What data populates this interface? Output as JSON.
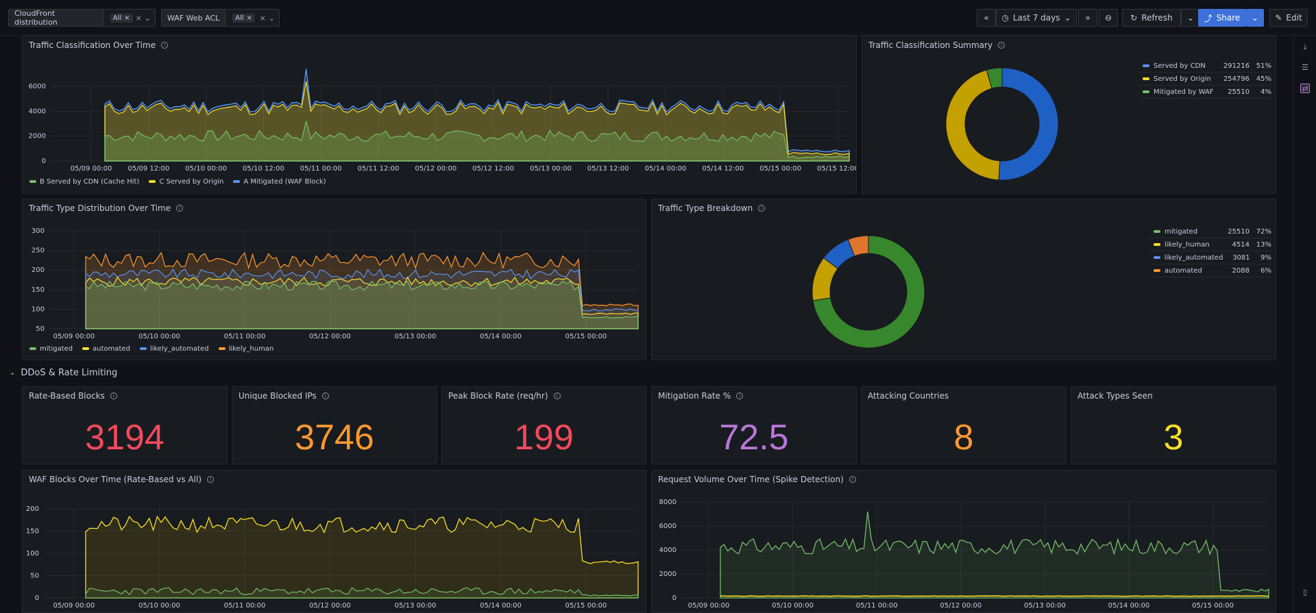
{
  "variables": [
    {
      "label": "CloudFront distribution",
      "value": "All"
    },
    {
      "label": "WAF Web ACL",
      "value": "All"
    }
  ],
  "toolbar": {
    "time_range": "Last 7 days",
    "refresh": "Refresh",
    "share": "Share",
    "edit": "Edit"
  },
  "icons": {
    "info": "i",
    "close": "×",
    "chevron": "⌄",
    "prev": "«",
    "next": "»",
    "zoom": "⊖",
    "refresh": "↻",
    "share": "⤴",
    "edit": "✎",
    "collapse": "⌄",
    "export": "⤓",
    "outline": "☰",
    "toggle": "⇄",
    "panel": "▯"
  },
  "colors": {
    "green": "#73bf69",
    "yellow": "#fade2a",
    "blue": "#5794f2",
    "orange": "#ff9830",
    "red": "#f2495c",
    "purple": "#b877d9",
    "cdn_blue": "#1f60c4",
    "origin_yellow": "#c4a000"
  },
  "panels": {
    "traffic_class_over_time": {
      "title": "Traffic Classification Over Time",
      "yticks": [
        "6000",
        "4000",
        "2000",
        "0"
      ],
      "xticks": [
        "05/09 00:00",
        "05/09 12:00",
        "05/10 00:00",
        "05/10 12:00",
        "05/11 00:00",
        "05/11 12:00",
        "05/12 00:00",
        "05/12 12:00",
        "05/13 00:00",
        "05/13 12:00",
        "05/14 00:00",
        "05/14 12:00",
        "05/15 00:00",
        "05/15 12:00"
      ],
      "legend": [
        "B Served by CDN (Cache Hit)",
        "C Served by Origin",
        "A Mitigated (WAF Block)"
      ]
    },
    "traffic_class_summary": {
      "title": "Traffic Classification Summary",
      "rows": [
        {
          "name": "Served by CDN",
          "value": "291216",
          "pct": "51%"
        },
        {
          "name": "Served by Origin",
          "value": "254796",
          "pct": "45%"
        },
        {
          "name": "Mitigated by WAF",
          "value": "25510",
          "pct": "4%"
        }
      ]
    },
    "traffic_type_over_time": {
      "title": "Traffic Type Distribution Over Time",
      "yticks": [
        "300",
        "250",
        "200",
        "150",
        "100",
        "50"
      ],
      "xticks": [
        "05/09 00:00",
        "05/10 00:00",
        "05/11 00:00",
        "05/12 00:00",
        "05/13 00:00",
        "05/14 00:00",
        "05/15 00:00"
      ],
      "legend": [
        "mitigated",
        "automated",
        "likely_automated",
        "likely_human"
      ]
    },
    "traffic_type_breakdown": {
      "title": "Traffic Type Breakdown",
      "rows": [
        {
          "name": "mitigated",
          "value": "25510",
          "pct": "72%"
        },
        {
          "name": "likely_human",
          "value": "4514",
          "pct": "13%"
        },
        {
          "name": "likely_automated",
          "value": "3081",
          "pct": "9%"
        },
        {
          "name": "automated",
          "value": "2088",
          "pct": "6%"
        }
      ]
    },
    "row_header": "DDoS & Rate Limiting",
    "stats": [
      {
        "title": "Rate-Based Blocks",
        "value": "3194",
        "has_info": true
      },
      {
        "title": "Unique Blocked IPs",
        "value": "3746",
        "has_info": true
      },
      {
        "title": "Peak Block Rate (req/hr)",
        "value": "199",
        "has_info": true
      },
      {
        "title": "Mitigation Rate %",
        "value": "72.5",
        "has_info": true
      },
      {
        "title": "Attacking Countries",
        "value": "8",
        "has_info": false
      },
      {
        "title": "Attack Types Seen",
        "value": "3",
        "has_info": false
      }
    ],
    "waf_blocks": {
      "title": "WAF Blocks Over Time (Rate-Based vs All)",
      "yticks": [
        "200",
        "150",
        "100",
        "50",
        "0"
      ],
      "xticks": [
        "05/09 00:00",
        "05/10 00:00",
        "05/11 00:00",
        "05/12 00:00",
        "05/13 00:00",
        "05/14 00:00",
        "05/15 00:00"
      ]
    },
    "request_volume": {
      "title": "Request Volume Over Time (Spike Detection)",
      "yticks": [
        "8000",
        "6000",
        "4000",
        "2000",
        "0"
      ],
      "xticks": [
        "05/09 00:00",
        "05/10 00:00",
        "05/11 00:00",
        "05/12 00:00",
        "05/13 00:00",
        "05/14 00:00",
        "05/15 00:00"
      ]
    }
  },
  "chart_data": [
    {
      "type": "area",
      "title": "Traffic Classification Over Time",
      "ylim": [
        0,
        7000
      ],
      "series": [
        {
          "name": "B Served by CDN (Cache Hit)",
          "level": 2000
        },
        {
          "name": "C Served by Origin",
          "level": 4200
        },
        {
          "name": "A Mitigated (WAF Block)",
          "level": 4400
        }
      ]
    },
    {
      "type": "pie",
      "title": "Traffic Classification Summary",
      "categories": [
        "Served by CDN",
        "Served by Origin",
        "Mitigated by WAF"
      ],
      "values": [
        291216,
        254796,
        25510
      ]
    },
    {
      "type": "area",
      "title": "Traffic Type Distribution Over Time",
      "ylim": [
        50,
        300
      ]
    },
    {
      "type": "pie",
      "title": "Traffic Type Breakdown",
      "categories": [
        "mitigated",
        "likely_human",
        "likely_automated",
        "automated"
      ],
      "values": [
        25510,
        4514,
        3081,
        2088
      ]
    },
    {
      "type": "line",
      "title": "WAF Blocks Over Time (Rate-Based vs All)",
      "ylim": [
        0,
        200
      ]
    },
    {
      "type": "line",
      "title": "Request Volume Over Time (Spike Detection)",
      "ylim": [
        0,
        8000
      ]
    }
  ]
}
